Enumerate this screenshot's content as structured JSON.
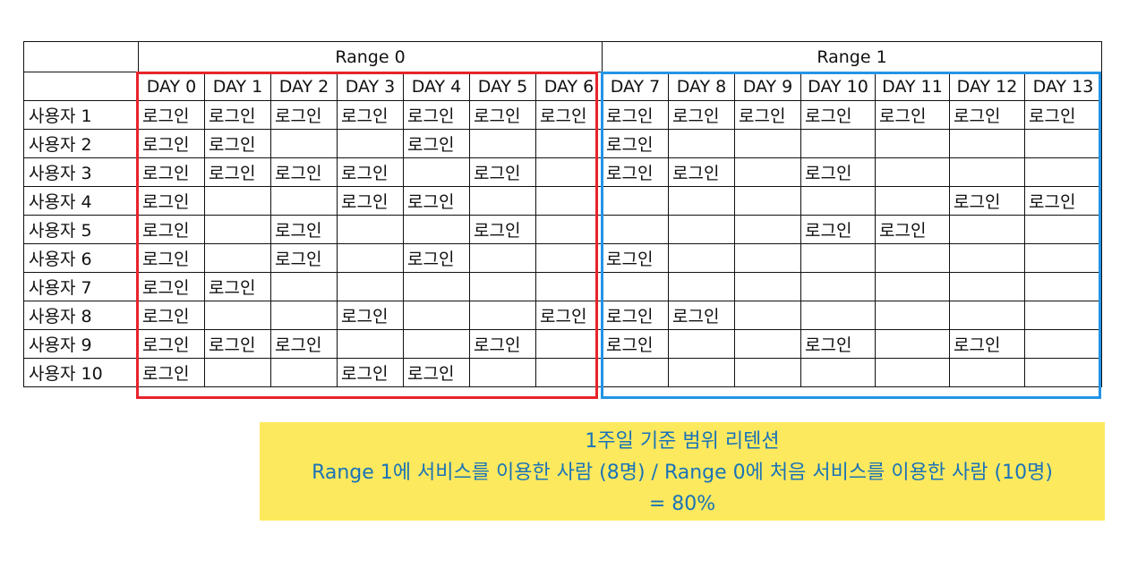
{
  "colors": {
    "range0_border": "#e8232a",
    "range1_border": "#2394e6",
    "note_background": "#fde95e",
    "note_text": "#1a73b8"
  },
  "ranges": [
    {
      "label": "Range 0",
      "days": [
        "DAY 0",
        "DAY 1",
        "DAY 2",
        "DAY 3",
        "DAY 4",
        "DAY 5",
        "DAY 6"
      ]
    },
    {
      "label": "Range 1",
      "days": [
        "DAY 7",
        "DAY 8",
        "DAY 9",
        "DAY 10",
        "DAY 11",
        "DAY 12",
        "DAY 13"
      ]
    }
  ],
  "users": [
    {
      "name": "사용자 1",
      "cells": [
        "로그인",
        "로그인",
        "로그인",
        "로그인",
        "로그인",
        "로그인",
        "로그인",
        "로그인",
        "로그인",
        "로그인",
        "로그인",
        "로그인",
        "로그인",
        "로그인"
      ]
    },
    {
      "name": "사용자 2",
      "cells": [
        "로그인",
        "로그인",
        "",
        "",
        "로그인",
        "",
        "",
        "로그인",
        "",
        "",
        "",
        "",
        "",
        ""
      ]
    },
    {
      "name": "사용자 3",
      "cells": [
        "로그인",
        "로그인",
        "로그인",
        "로그인",
        "",
        "로그인",
        "",
        "로그인",
        "로그인",
        "",
        "로그인",
        "",
        "",
        ""
      ]
    },
    {
      "name": "사용자 4",
      "cells": [
        "로그인",
        "",
        "",
        "로그인",
        "로그인",
        "",
        "",
        "",
        "",
        "",
        "",
        "",
        "로그인",
        "로그인"
      ]
    },
    {
      "name": "사용자 5",
      "cells": [
        "로그인",
        "",
        "로그인",
        "",
        "",
        "로그인",
        "",
        "",
        "",
        "",
        "로그인",
        "로그인",
        "",
        ""
      ]
    },
    {
      "name": "사용자 6",
      "cells": [
        "로그인",
        "",
        "로그인",
        "",
        "로그인",
        "",
        "",
        "로그인",
        "",
        "",
        "",
        "",
        "",
        ""
      ]
    },
    {
      "name": "사용자 7",
      "cells": [
        "로그인",
        "로그인",
        "",
        "",
        "",
        "",
        "",
        "",
        "",
        "",
        "",
        "",
        "",
        ""
      ]
    },
    {
      "name": "사용자 8",
      "cells": [
        "로그인",
        "",
        "",
        "로그인",
        "",
        "",
        "로그인",
        "로그인",
        "로그인",
        "",
        "",
        "",
        "",
        ""
      ]
    },
    {
      "name": "사용자 9",
      "cells": [
        "로그인",
        "로그인",
        "로그인",
        "",
        "",
        "로그인",
        "",
        "로그인",
        "",
        "",
        "로그인",
        "",
        "로그인",
        ""
      ]
    },
    {
      "name": "사용자 10",
      "cells": [
        "로그인",
        "",
        "",
        "로그인",
        "로그인",
        "",
        "",
        "",
        "",
        "",
        "",
        "",
        "",
        ""
      ]
    }
  ],
  "note": {
    "line1": "1주일 기준 범위 리텐션",
    "line2": "Range 1에 서비스를 이용한 사람 (8명) / Range 0에 처음 서비스를 이용한 사람 (10명)",
    "line3": "= 80%"
  }
}
